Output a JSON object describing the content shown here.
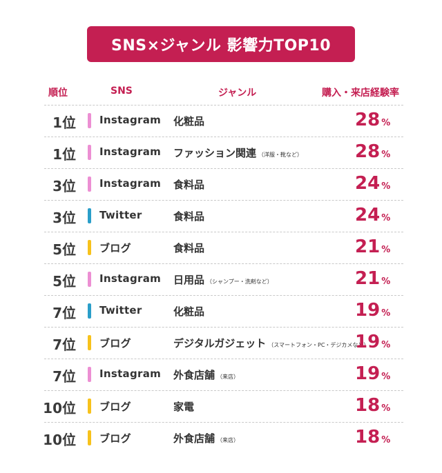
{
  "title": "SNS×ジャンル 影響力TOP10",
  "headers": {
    "rank": "順位",
    "sns": "SNS",
    "genre": "ジャンル",
    "pct": "購入・来店経験率"
  },
  "colors": {
    "accent": "#c41f52",
    "Instagram": "#ec8fd3",
    "Twitter": "#2a9ec9",
    "ブログ": "#f7c21c"
  },
  "chart_data": {
    "type": "table",
    "title": "SNS×ジャンル 影響力TOP10",
    "columns": [
      "順位",
      "SNS",
      "ジャンル",
      "購入・来店経験率"
    ],
    "rows": [
      {
        "rank": "1位",
        "sns": "Instagram",
        "genre": "化粧品",
        "note": "",
        "value": 28,
        "unit": "%"
      },
      {
        "rank": "1位",
        "sns": "Instagram",
        "genre": "ファッション関連",
        "note": "（洋服・靴など）",
        "value": 28,
        "unit": "%"
      },
      {
        "rank": "3位",
        "sns": "Instagram",
        "genre": "食料品",
        "note": "",
        "value": 24,
        "unit": "%"
      },
      {
        "rank": "3位",
        "sns": "Twitter",
        "genre": "食料品",
        "note": "",
        "value": 24,
        "unit": "%"
      },
      {
        "rank": "5位",
        "sns": "ブログ",
        "genre": "食料品",
        "note": "",
        "value": 21,
        "unit": "%"
      },
      {
        "rank": "5位",
        "sns": "Instagram",
        "genre": "日用品",
        "note": "（シャンプー・洗剤など）",
        "value": 21,
        "unit": "%"
      },
      {
        "rank": "7位",
        "sns": "Twitter",
        "genre": "化粧品",
        "note": "",
        "value": 19,
        "unit": "%"
      },
      {
        "rank": "7位",
        "sns": "ブログ",
        "genre": "デジタルガジェット",
        "note": "（スマートフォン・PC・デジカメなど）",
        "value": 19,
        "unit": "%"
      },
      {
        "rank": "7位",
        "sns": "Instagram",
        "genre": "外食店舗",
        "note": "（来店）",
        "value": 19,
        "unit": "%"
      },
      {
        "rank": "10位",
        "sns": "ブログ",
        "genre": "家電",
        "note": "",
        "value": 18,
        "unit": "%"
      },
      {
        "rank": "10位",
        "sns": "ブログ",
        "genre": "外食店舗",
        "note": "（来店）",
        "value": 18,
        "unit": "%"
      }
    ]
  }
}
